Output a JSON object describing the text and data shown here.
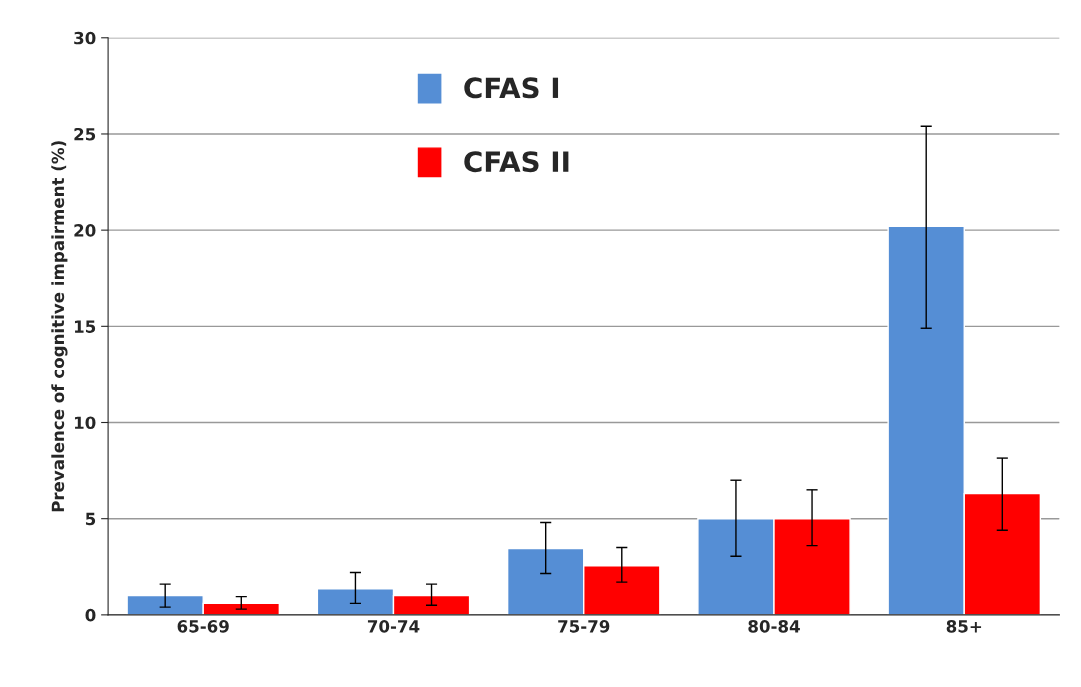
{
  "chart_data": {
    "type": "bar",
    "ylabel": "Prevalence of cognitive impairment (%)",
    "categories": [
      "65-69",
      "70-74",
      "75-79",
      "80-84",
      "85+"
    ],
    "series": [
      {
        "name": "CFAS I",
        "color": "#558ed5",
        "values": [
          1.0,
          1.35,
          3.45,
          5.0,
          20.2
        ],
        "errors": [
          [
            0.4,
            1.6
          ],
          [
            0.6,
            2.2
          ],
          [
            2.15,
            4.8
          ],
          [
            3.05,
            7.0
          ],
          [
            14.9,
            25.4
          ]
        ]
      },
      {
        "name": "CFAS II",
        "color": "#ff0000",
        "values": [
          0.6,
          1.0,
          2.55,
          5.0,
          6.3
        ],
        "errors": [
          [
            0.3,
            0.95
          ],
          [
            0.5,
            1.6
          ],
          [
            1.7,
            3.5
          ],
          [
            3.6,
            6.5
          ],
          [
            4.4,
            8.15
          ]
        ]
      }
    ],
    "ylim": [
      0,
      30
    ],
    "yticks": [
      0,
      5,
      10,
      15,
      20,
      25,
      30
    ],
    "grid": "y",
    "legend": "top left"
  }
}
